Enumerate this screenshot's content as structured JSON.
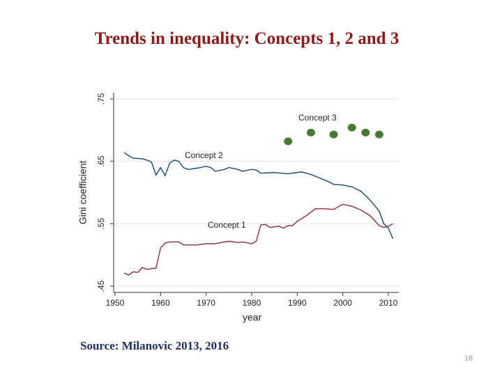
{
  "title": "Trends in inequality: Concepts 1, 2 and 3",
  "source": "Source: Milanovic 2013, 2016",
  "page_number": "18",
  "chart_data": {
    "type": "line",
    "xlabel": "year",
    "ylabel": "Gini coefficient",
    "xlim": [
      1949.7,
      2012.3
    ],
    "xticks": [
      1950,
      1960,
      1970,
      1980,
      1990,
      2000,
      2010
    ],
    "ylim": [
      0.44,
      0.76
    ],
    "yticks": [
      {
        "value": 0.45,
        "label": ".45"
      },
      {
        "value": 0.55,
        "label": ".55"
      },
      {
        "value": 0.65,
        "label": ".65"
      },
      {
        "value": 0.75,
        "label": ".75"
      }
    ],
    "grid": true,
    "series": [
      {
        "name": "Concept 1",
        "color": "#8c2f39",
        "style": "line",
        "x": [
          1952,
          1953,
          1954,
          1955,
          1956,
          1957,
          1958,
          1959,
          1960,
          1961,
          1962,
          1964,
          1965,
          1968,
          1970,
          1972,
          1974,
          1975,
          1977,
          1978,
          1980,
          1981,
          1982,
          1983,
          1984,
          1986,
          1987,
          1988,
          1989,
          1990,
          1992,
          1994,
          1996,
          1998,
          2000,
          2002,
          2004,
          2006,
          2008,
          2009,
          2010,
          2011
        ],
        "values": [
          0.471,
          0.468,
          0.473,
          0.472,
          0.48,
          0.477,
          0.478,
          0.479,
          0.511,
          0.519,
          0.521,
          0.521,
          0.516,
          0.516,
          0.518,
          0.518,
          0.521,
          0.522,
          0.52,
          0.521,
          0.518,
          0.522,
          0.548,
          0.549,
          0.544,
          0.546,
          0.543,
          0.547,
          0.547,
          0.554,
          0.563,
          0.574,
          0.574,
          0.573,
          0.581,
          0.578,
          0.572,
          0.563,
          0.547,
          0.544,
          0.546,
          0.55
        ]
      },
      {
        "name": "Concept 2",
        "color": "#1a476f",
        "style": "line",
        "x": [
          1952,
          1953,
          1954,
          1956,
          1957,
          1958,
          1959,
          1960,
          1961,
          1962,
          1963,
          1964,
          1965,
          1966,
          1968,
          1970,
          1971,
          1972,
          1974,
          1975,
          1977,
          1978,
          1980,
          1981,
          1982,
          1985,
          1988,
          1991,
          1993,
          1995,
          1997,
          1998,
          2000,
          2002,
          2004,
          2006,
          2008,
          2009,
          2010,
          2011
        ],
        "values": [
          0.664,
          0.659,
          0.655,
          0.654,
          0.652,
          0.649,
          0.628,
          0.64,
          0.627,
          0.647,
          0.652,
          0.65,
          0.64,
          0.637,
          0.639,
          0.642,
          0.64,
          0.634,
          0.637,
          0.64,
          0.637,
          0.634,
          0.637,
          0.636,
          0.631,
          0.632,
          0.63,
          0.633,
          0.629,
          0.623,
          0.617,
          0.613,
          0.612,
          0.609,
          0.602,
          0.588,
          0.57,
          0.55,
          0.543,
          0.526
        ]
      },
      {
        "name": "Concept 3",
        "color": "#4a7a32",
        "style": "markers",
        "x": [
          1988,
          1993,
          1998,
          2002,
          2005,
          2008
        ],
        "values": [
          0.682,
          0.696,
          0.693,
          0.704,
          0.696,
          0.693
        ]
      }
    ]
  }
}
